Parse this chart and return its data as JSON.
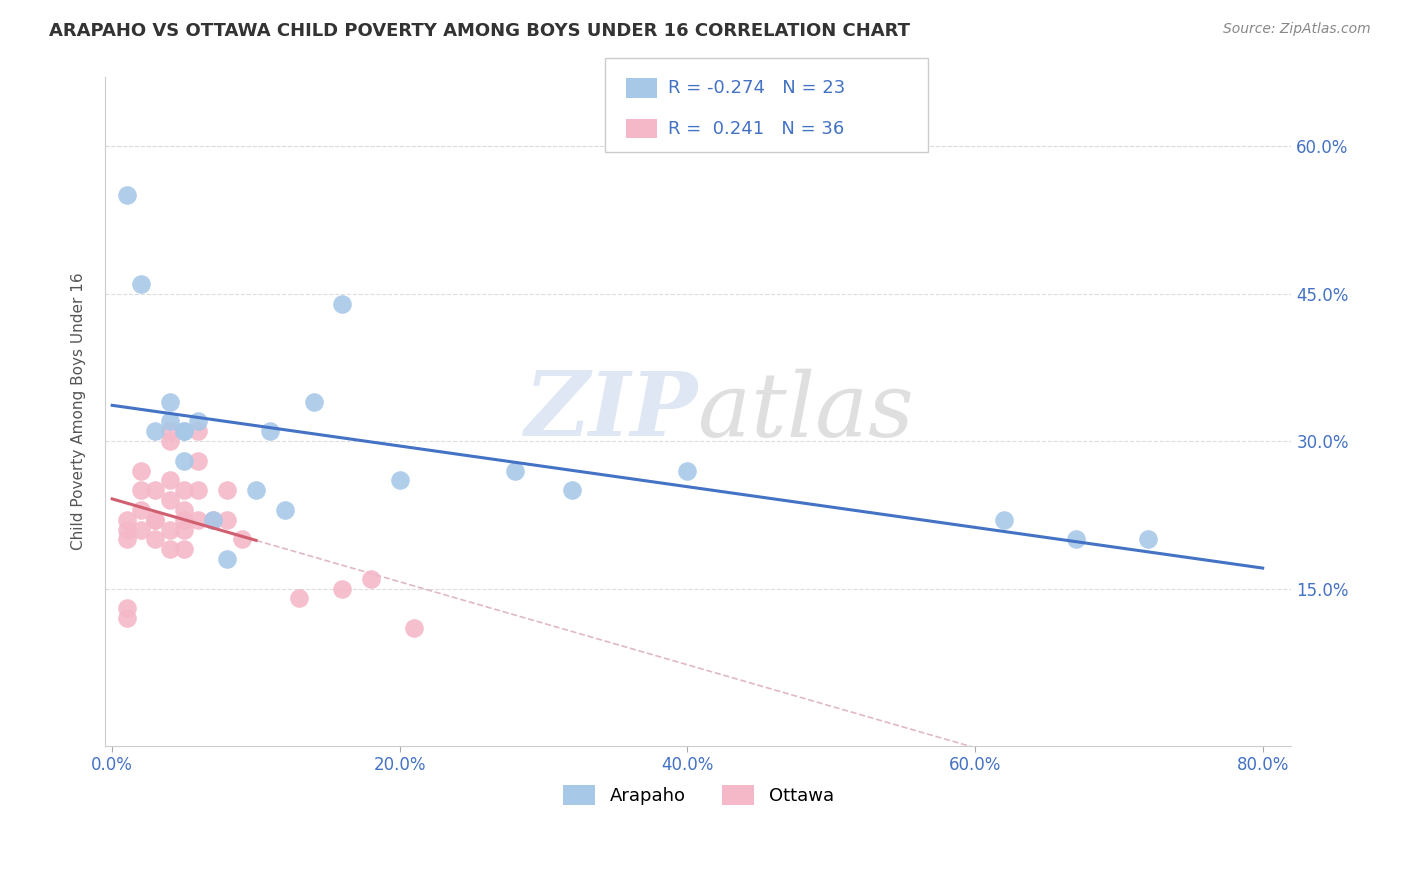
{
  "title": "ARAPAHO VS OTTAWA CHILD POVERTY AMONG BOYS UNDER 16 CORRELATION CHART",
  "source": "Source: ZipAtlas.com",
  "ylabel": "Child Poverty Among Boys Under 16",
  "xlabel": "",
  "xlim": [
    -0.005,
    0.82
  ],
  "ylim": [
    -0.01,
    0.67
  ],
  "xticks": [
    0.0,
    0.2,
    0.4,
    0.6,
    0.8
  ],
  "xtick_labels": [
    "0.0%",
    "20.0%",
    "40.0%",
    "60.0%",
    "80.0%"
  ],
  "yticks": [
    0.0,
    0.15,
    0.3,
    0.45,
    0.6
  ],
  "ytick_labels_right": [
    "",
    "15.0%",
    "30.0%",
    "45.0%",
    "60.0%"
  ],
  "background_color": "#ffffff",
  "grid_color": "#dddddd",
  "watermark_zip": "ZIP",
  "watermark_atlas": "atlas",
  "arapaho_color": "#a8c8e8",
  "ottawa_color": "#f4b8c8",
  "arapaho_line_color": "#4472c4",
  "ottawa_line_color": "#d06070",
  "dash_line_color": "#d8a8b8",
  "R_arapaho": -0.274,
  "N_arapaho": 23,
  "R_ottawa": 0.241,
  "N_ottawa": 36,
  "arapaho_x": [
    0.01,
    0.02,
    0.03,
    0.04,
    0.04,
    0.05,
    0.05,
    0.05,
    0.06,
    0.07,
    0.08,
    0.1,
    0.11,
    0.12,
    0.14,
    0.16,
    0.2,
    0.28,
    0.32,
    0.4,
    0.62,
    0.67,
    0.72
  ],
  "arapaho_y": [
    0.55,
    0.46,
    0.31,
    0.34,
    0.32,
    0.31,
    0.31,
    0.28,
    0.32,
    0.22,
    0.18,
    0.25,
    0.31,
    0.23,
    0.34,
    0.44,
    0.26,
    0.27,
    0.25,
    0.27,
    0.22,
    0.2,
    0.2
  ],
  "ottawa_x": [
    0.01,
    0.01,
    0.01,
    0.01,
    0.01,
    0.02,
    0.02,
    0.02,
    0.02,
    0.03,
    0.03,
    0.03,
    0.03,
    0.04,
    0.04,
    0.04,
    0.04,
    0.04,
    0.04,
    0.05,
    0.05,
    0.05,
    0.05,
    0.05,
    0.06,
    0.06,
    0.06,
    0.06,
    0.07,
    0.08,
    0.08,
    0.09,
    0.13,
    0.16,
    0.18,
    0.21
  ],
  "ottawa_y": [
    0.2,
    0.21,
    0.22,
    0.13,
    0.12,
    0.21,
    0.23,
    0.25,
    0.27,
    0.2,
    0.22,
    0.25,
    0.22,
    0.19,
    0.21,
    0.24,
    0.26,
    0.3,
    0.31,
    0.21,
    0.23,
    0.25,
    0.22,
    0.19,
    0.22,
    0.25,
    0.28,
    0.31,
    0.22,
    0.25,
    0.22,
    0.2,
    0.14,
    0.15,
    0.16,
    0.11
  ]
}
